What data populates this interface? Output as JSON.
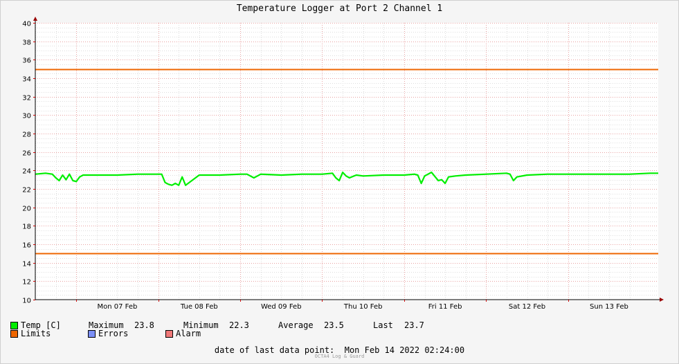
{
  "chart_data": {
    "type": "line",
    "title": "Temperature Logger at Port 2 Channel 1",
    "ylim": [
      10,
      40
    ],
    "yticks": [
      10,
      12,
      14,
      16,
      18,
      20,
      22,
      24,
      26,
      28,
      30,
      32,
      34,
      36,
      38,
      40
    ],
    "xlim": [
      "2022-02-06 12:00",
      "2022-02-14 02:24"
    ],
    "xticks": [
      {
        "label": "Mon 07 Feb",
        "at": "2022-02-07 00:00"
      },
      {
        "label": "Tue 08 Feb",
        "at": "2022-02-08 00:00"
      },
      {
        "label": "Wed 09 Feb",
        "at": "2022-02-09 00:00"
      },
      {
        "label": "Thu 10 Feb",
        "at": "2022-02-10 00:00"
      },
      {
        "label": "Fri 11 Feb",
        "at": "2022-02-11 00:00"
      },
      {
        "label": "Sat 12 Feb",
        "at": "2022-02-12 00:00"
      },
      {
        "label": "Sun 13 Feb",
        "at": "2022-02-13 00:00"
      }
    ],
    "grid": true,
    "series": [
      {
        "name": "Temp [C]",
        "color": "#00ee00",
        "x": [
          "2022-02-06 12:00",
          "2022-02-06 15:00",
          "2022-02-06 17:00",
          "2022-02-06 18:00",
          "2022-02-06 19:00",
          "2022-02-06 20:00",
          "2022-02-06 21:00",
          "2022-02-06 22:00",
          "2022-02-06 23:00",
          "2022-02-07 00:00",
          "2022-02-07 01:00",
          "2022-02-07 02:00",
          "2022-02-07 03:00",
          "2022-02-07 06:00",
          "2022-02-07 12:00",
          "2022-02-07 18:00",
          "2022-02-08 00:00",
          "2022-02-08 01:00",
          "2022-02-08 02:00",
          "2022-02-08 03:00",
          "2022-02-08 04:00",
          "2022-02-08 05:00",
          "2022-02-08 06:00",
          "2022-02-08 07:00",
          "2022-02-08 08:00",
          "2022-02-08 12:00",
          "2022-02-08 18:00",
          "2022-02-09 00:00",
          "2022-02-09 02:00",
          "2022-02-09 04:00",
          "2022-02-09 06:00",
          "2022-02-09 12:00",
          "2022-02-09 18:00",
          "2022-02-10 00:00",
          "2022-02-10 03:00",
          "2022-02-10 04:00",
          "2022-02-10 05:00",
          "2022-02-10 06:00",
          "2022-02-10 07:00",
          "2022-02-10 08:00",
          "2022-02-10 10:00",
          "2022-02-10 12:00",
          "2022-02-10 18:00",
          "2022-02-11 00:00",
          "2022-02-11 03:00",
          "2022-02-11 04:00",
          "2022-02-11 05:00",
          "2022-02-11 06:00",
          "2022-02-11 08:00",
          "2022-02-11 10:00",
          "2022-02-11 11:00",
          "2022-02-11 12:00",
          "2022-02-11 13:00",
          "2022-02-11 15:00",
          "2022-02-11 18:00",
          "2022-02-12 00:00",
          "2022-02-12 06:00",
          "2022-02-12 07:00",
          "2022-02-12 08:00",
          "2022-02-12 09:00",
          "2022-02-12 12:00",
          "2022-02-12 18:00",
          "2022-02-13 00:00",
          "2022-02-13 06:00",
          "2022-02-13 12:00",
          "2022-02-13 18:00",
          "2022-02-14 00:00",
          "2022-02-14 02:24"
        ],
        "values": [
          23.6,
          23.7,
          23.6,
          23.2,
          22.9,
          23.5,
          23.0,
          23.6,
          22.9,
          22.8,
          23.3,
          23.5,
          23.5,
          23.5,
          23.5,
          23.6,
          23.6,
          23.6,
          22.7,
          22.5,
          22.4,
          22.6,
          22.4,
          23.3,
          22.4,
          23.5,
          23.5,
          23.6,
          23.6,
          23.2,
          23.6,
          23.5,
          23.6,
          23.6,
          23.7,
          23.2,
          22.9,
          23.8,
          23.4,
          23.2,
          23.5,
          23.4,
          23.5,
          23.5,
          23.6,
          23.5,
          22.6,
          23.4,
          23.8,
          22.9,
          23.0,
          22.6,
          23.3,
          23.4,
          23.5,
          23.6,
          23.7,
          23.6,
          22.9,
          23.3,
          23.5,
          23.6,
          23.6,
          23.6,
          23.6,
          23.6,
          23.7,
          23.7
        ]
      },
      {
        "name": "Limits",
        "color": "#ee6600",
        "levels": [
          15,
          35
        ]
      }
    ]
  },
  "legend": {
    "temp_label": "Temp [C]",
    "temp_color": "#00ee00",
    "maximum_label": "Maximum",
    "maximum_value": "23.8",
    "minimum_label": "Minimum",
    "minimum_value": "22.3",
    "average_label": "Average",
    "average_value": "23.5",
    "last_label": "Last",
    "last_value": "23.7",
    "limits_label": "Limits",
    "limits_color": "#ee6600",
    "errors_label": "Errors",
    "errors_color": "#7b8ff6",
    "alarm_label": "Alarm",
    "alarm_color": "#f07878"
  },
  "footer": {
    "last_point_label": "date of last data point:",
    "last_point_value": "Mon Feb 14 2022 02:24:00",
    "credit": "OCTA4 Log & Guard"
  }
}
